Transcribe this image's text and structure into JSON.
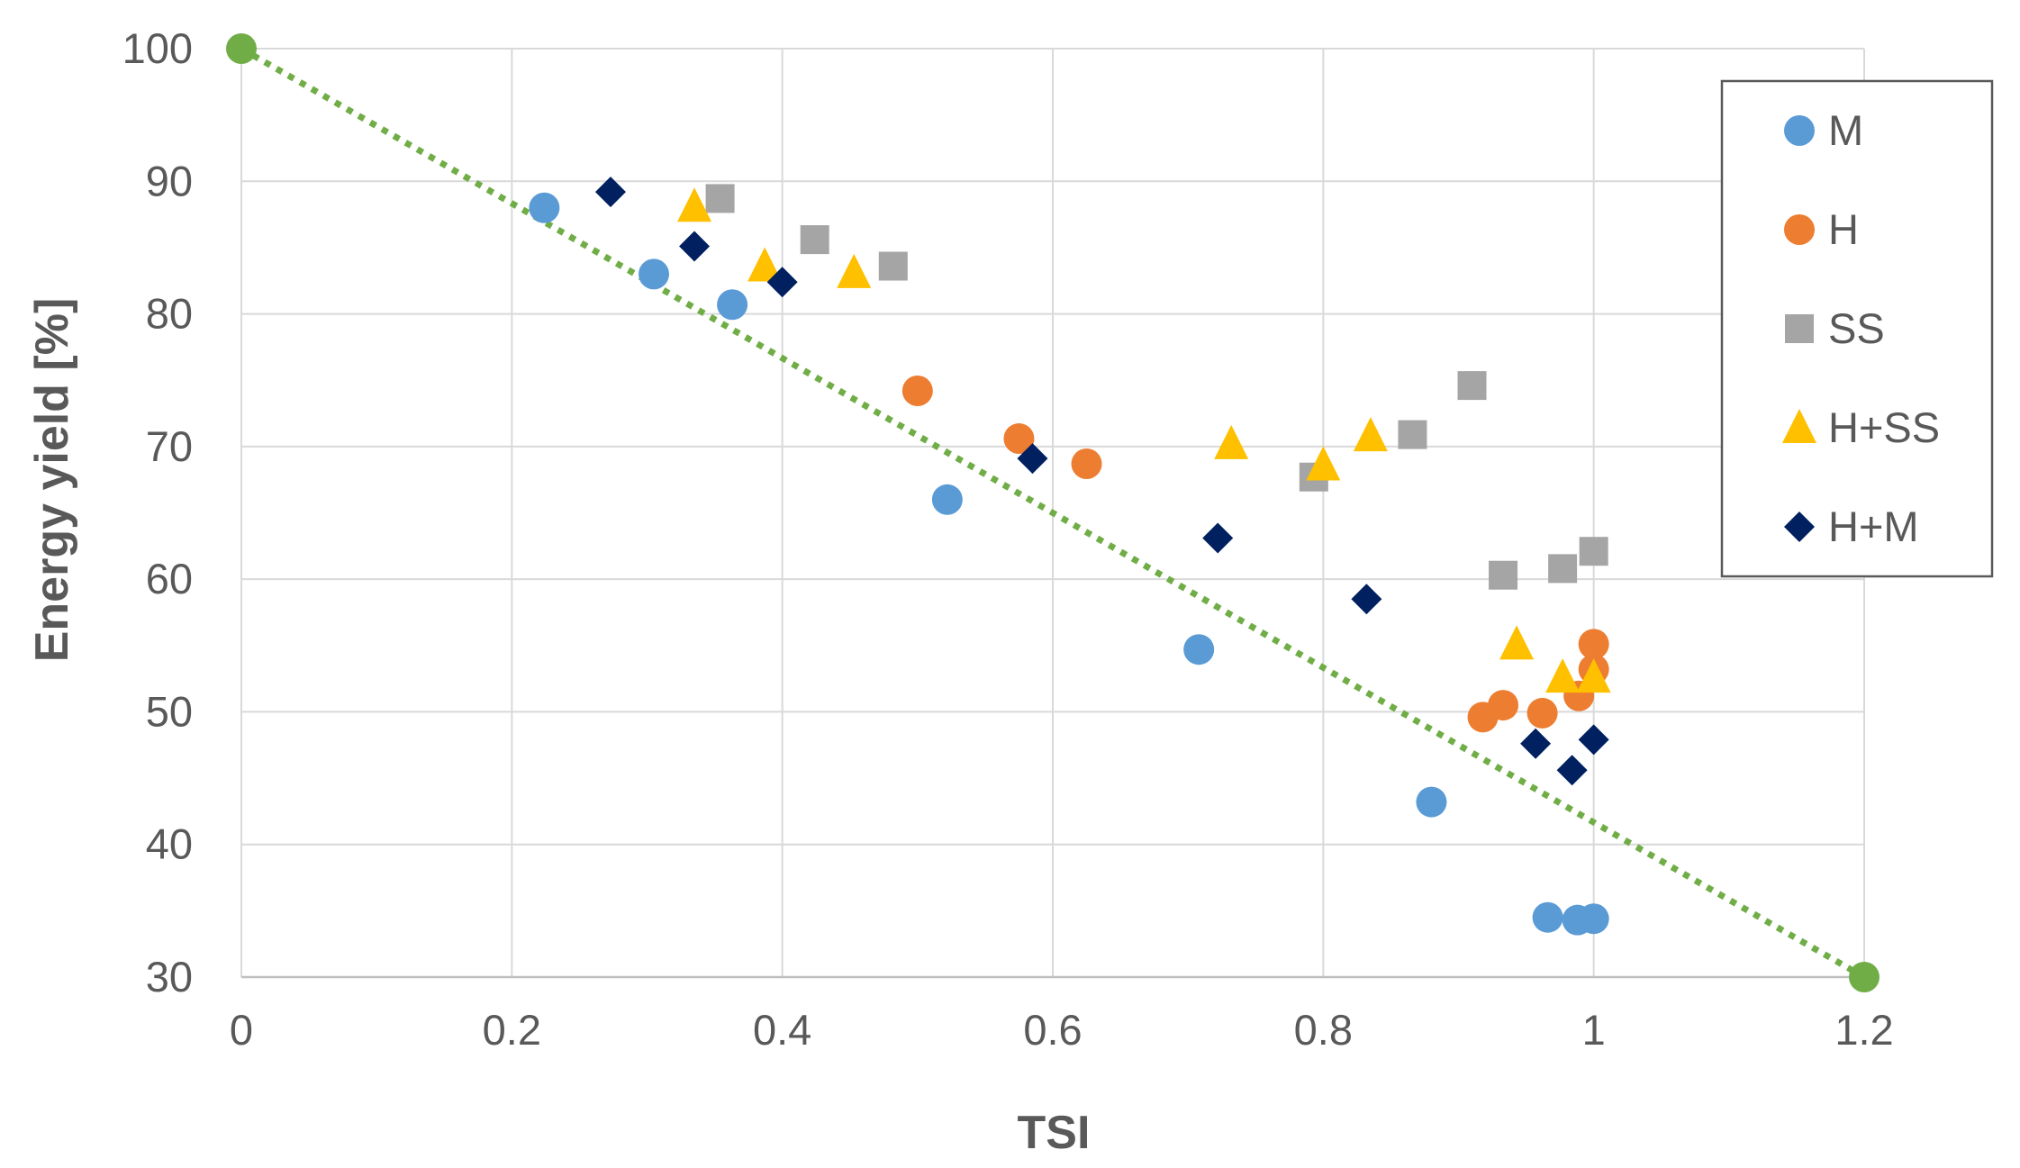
{
  "chart_data": {
    "type": "scatter",
    "title": "",
    "xlabel": "TSI",
    "ylabel": "Energy yield [%]",
    "xlim": [
      0,
      1.2
    ],
    "ylim": [
      30,
      100
    ],
    "x_ticks": [
      0,
      0.2,
      0.4,
      0.6,
      0.8,
      1,
      1.2
    ],
    "x_tick_labels": [
      "0",
      "0.2",
      "0.4",
      "0.6",
      "0.8",
      "1",
      "1.2"
    ],
    "y_ticks": [
      30,
      40,
      50,
      60,
      70,
      80,
      90,
      100
    ],
    "y_tick_labels": [
      "30",
      "40",
      "50",
      "60",
      "70",
      "80",
      "90",
      "100"
    ],
    "grid": true,
    "legend_position": "top-right",
    "trendline": {
      "style": "dotted",
      "color": "#70ad47",
      "points": [
        {
          "x": 0,
          "y": 100
        },
        {
          "x": 1.2,
          "y": 30
        }
      ]
    },
    "series": [
      {
        "name": "M",
        "marker": "circle",
        "color": "#5b9bd5",
        "points": [
          [
            0.224,
            88
          ],
          [
            0.305,
            83
          ],
          [
            0.363,
            80.7
          ],
          [
            0.522,
            66
          ],
          [
            0.708,
            54.7
          ],
          [
            0.88,
            43.2
          ],
          [
            0.966,
            34.5
          ],
          [
            0.988,
            34.3
          ],
          [
            1.0,
            34.4
          ]
        ]
      },
      {
        "name": "H",
        "marker": "circle",
        "color": "#ed7d31",
        "points": [
          [
            0.5,
            74.2
          ],
          [
            0.575,
            70.6
          ],
          [
            0.625,
            68.7
          ],
          [
            0.918,
            49.6
          ],
          [
            0.933,
            50.5
          ],
          [
            0.962,
            49.9
          ],
          [
            0.989,
            51.2
          ],
          [
            1.0,
            55.1
          ],
          [
            1.0,
            53.2
          ]
        ]
      },
      {
        "name": "SS",
        "marker": "square",
        "color": "#a5a5a5",
        "points": [
          [
            0.354,
            88.7
          ],
          [
            0.424,
            85.6
          ],
          [
            0.482,
            83.6
          ],
          [
            0.793,
            67.7
          ],
          [
            0.866,
            70.9
          ],
          [
            0.91,
            74.6
          ],
          [
            0.933,
            60.3
          ],
          [
            0.977,
            60.8
          ],
          [
            1.0,
            62.1
          ]
        ]
      },
      {
        "name": "H+SS",
        "marker": "triangle",
        "color": "#ffc000",
        "points": [
          [
            0.335,
            88.1
          ],
          [
            0.387,
            83.6
          ],
          [
            0.453,
            83.1
          ],
          [
            0.732,
            70.2
          ],
          [
            0.8,
            68.6
          ],
          [
            0.835,
            70.8
          ],
          [
            0.943,
            55.1
          ],
          [
            0.977,
            52.6
          ],
          [
            1.0,
            52.6
          ]
        ]
      },
      {
        "name": "H+M",
        "marker": "diamond",
        "color": "#002060",
        "points": [
          [
            0.273,
            89.2
          ],
          [
            0.335,
            85.1
          ],
          [
            0.4,
            82.4
          ],
          [
            0.585,
            69.1
          ],
          [
            0.722,
            63.1
          ],
          [
            0.832,
            58.5
          ],
          [
            0.957,
            47.6
          ],
          [
            0.984,
            45.6
          ],
          [
            1.0,
            47.9
          ]
        ]
      }
    ]
  }
}
